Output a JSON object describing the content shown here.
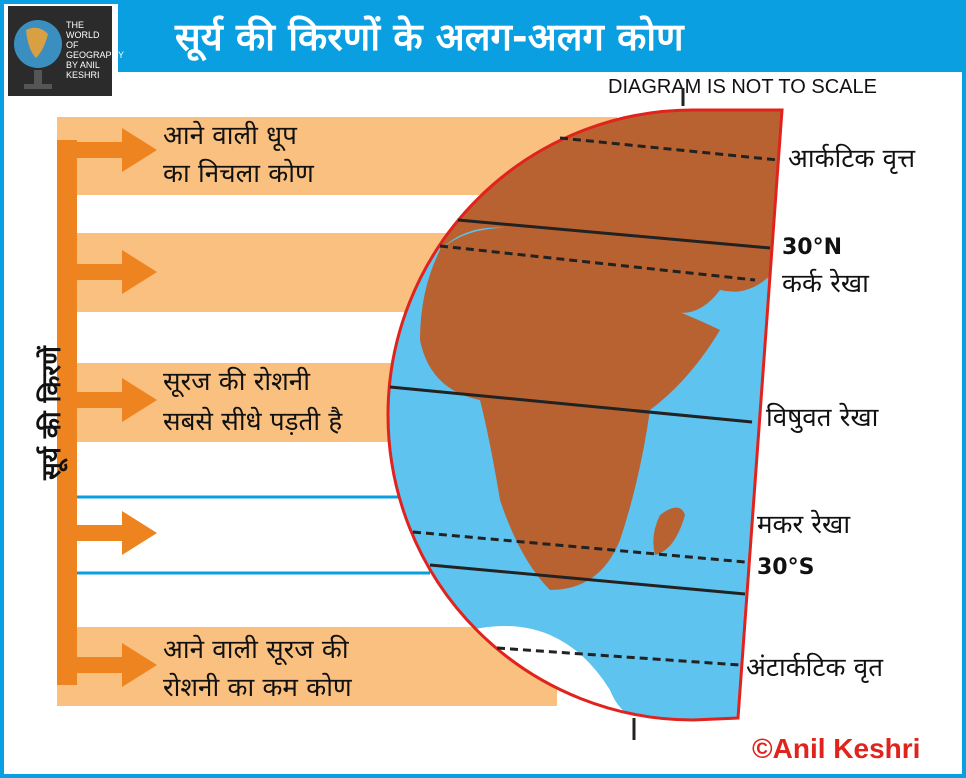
{
  "title": "सूर्य की किरणों के अलग-अलग कोण",
  "logo": {
    "text": "THE WORLD OF GEOGRAPHY BY ANIL KESHRI"
  },
  "note": "DIAGRAM IS NOT TO SCALE",
  "rays_label": "सूर्य की किरणें",
  "band_labels": {
    "top": [
      "आने वाली धूप",
      "का निचला कोण"
    ],
    "middle": [
      "सूरज की रोशनी",
      "सबसे सीधे पड़ती है"
    ],
    "bottom": [
      "आने वाली सूरज की",
      "रोशनी का कम कोण"
    ]
  },
  "latitude_labels": {
    "arctic": "आर्कटिक वृत्त",
    "n30": "30°N",
    "cancer": "कर्क रेखा",
    "equator": "विषुवत रेखा",
    "capricorn": "मकर रेखा",
    "s30": "30°S",
    "antarctic": "अंटार्कटिक वृत"
  },
  "copyright": "©Anil Keshri",
  "colors": {
    "frame": "#0a9fe0",
    "band": "#f9c07f",
    "arrow": "#ee8420",
    "ocean": "#5ec3ef",
    "land": "#b86232",
    "outline": "#e0231d"
  }
}
